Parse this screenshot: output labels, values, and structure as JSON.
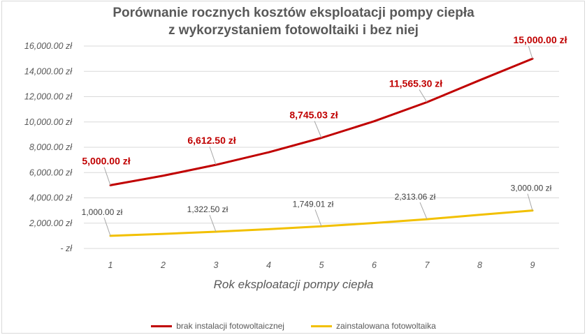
{
  "chart_data": {
    "type": "line",
    "title_line1": "Porównanie rocznych kosztów eksploatacji pompy ciepła",
    "title_line2": "z wykorzystaniem fotowoltaiki i bez niej",
    "xlabel": "Rok eksploatacji pompy ciepła",
    "x": [
      1,
      2,
      3,
      4,
      5,
      6,
      7,
      8,
      9
    ],
    "ylim": [
      0,
      16000
    ],
    "yticks": [
      {
        "value": 0,
        "label": "-   zł"
      },
      {
        "value": 2000,
        "label": "2,000.00 zł"
      },
      {
        "value": 4000,
        "label": "4,000.00 zł"
      },
      {
        "value": 6000,
        "label": "6,000.00 zł"
      },
      {
        "value": 8000,
        "label": "8,000.00 zł"
      },
      {
        "value": 10000,
        "label": "10,000.00 zł"
      },
      {
        "value": 12000,
        "label": "12,000.00 zł"
      },
      {
        "value": 14000,
        "label": "14,000.00 zł"
      },
      {
        "value": 16000,
        "label": "16,000.00 zł"
      }
    ],
    "grid": true,
    "legend_position": "bottom",
    "series": [
      {
        "name": "brak instalacji fotowoltaicznej",
        "color": "#c00000",
        "values": [
          5000,
          5750,
          6612.5,
          7604.38,
          8745.03,
          10056.79,
          11565.3,
          13300.1,
          15000
        ],
        "data_labels": [
          {
            "index": 0,
            "text": "5,000.00 zł"
          },
          {
            "index": 2,
            "text": "6,612.50 zł"
          },
          {
            "index": 4,
            "text": "8,745.03 zł"
          },
          {
            "index": 6,
            "text": "11,565.30 zł"
          },
          {
            "index": 8,
            "text": "15,000.00 zł"
          }
        ]
      },
      {
        "name": "zainstalowana fotowoltaika",
        "color": "#f2c000",
        "values": [
          1000,
          1150,
          1322.5,
          1520.88,
          1749.01,
          2011.36,
          2313.06,
          2660.02,
          3000
        ],
        "data_labels": [
          {
            "index": 0,
            "text": "1,000.00 zł"
          },
          {
            "index": 2,
            "text": "1,322.50 zł"
          },
          {
            "index": 4,
            "text": "1,749.01 zł"
          },
          {
            "index": 6,
            "text": "2,313.06 zł"
          },
          {
            "index": 8,
            "text": "3,000.00 zł"
          }
        ]
      }
    ]
  }
}
